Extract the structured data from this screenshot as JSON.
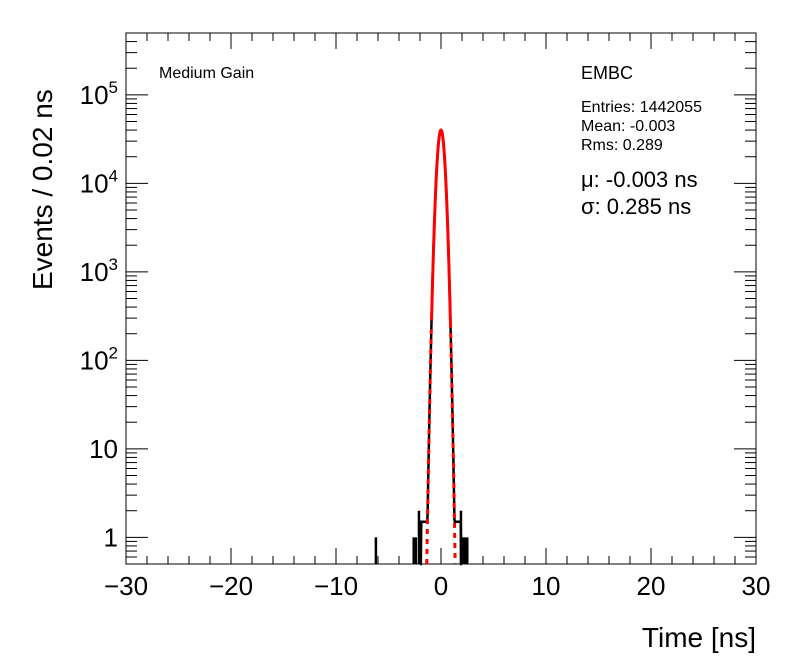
{
  "chart_data": {
    "type": "histogram",
    "title": "",
    "xlabel": "Time [ns]",
    "ylabel": "Events / 0.02 ns",
    "xlim": [
      -30,
      30
    ],
    "ylim": [
      0.5,
      500000
    ],
    "y_scale": "log",
    "bin_width_ns": 0.02,
    "x_ticks": [
      "−30",
      "−20",
      "−10",
      "0",
      "10",
      "20",
      "30"
    ],
    "y_ticks": [
      {
        "value": 1,
        "label": "1"
      },
      {
        "value": 10,
        "label": "10"
      },
      {
        "value": 100,
        "base": "10",
        "exp": "2"
      },
      {
        "value": 1000,
        "base": "10",
        "exp": "3"
      },
      {
        "value": 10000,
        "base": "10",
        "exp": "4"
      },
      {
        "value": 100000,
        "base": "10",
        "exp": "5"
      }
    ],
    "annotations": {
      "gain": "Medium Gain",
      "partition": "EMBC",
      "entries": "Entries: 1442055",
      "mean": "Mean: -0.003",
      "rms": "Rms: 0.289",
      "mu": "μ: -0.003 ns",
      "sigma": "σ: 0.285 ns"
    },
    "histogram": {
      "color": "#000000",
      "peak_counts": 40000,
      "isolated_entries": [
        {
          "x": -6.2,
          "count": 1
        },
        {
          "x": -2.6,
          "count": 1
        },
        {
          "x": -2.4,
          "count": 1
        },
        {
          "x": -2.1,
          "count": 2
        },
        {
          "x": 1.9,
          "count": 2
        },
        {
          "x": 2.1,
          "count": 1
        },
        {
          "x": 2.3,
          "count": 1
        },
        {
          "x": 2.5,
          "count": 1
        }
      ]
    },
    "fit": {
      "type": "gaussian",
      "color": "#ff0000",
      "mu": -0.003,
      "sigma": 0.285,
      "amplitude": 40000,
      "solid_range": [
        -0.9,
        0.9
      ]
    }
  }
}
